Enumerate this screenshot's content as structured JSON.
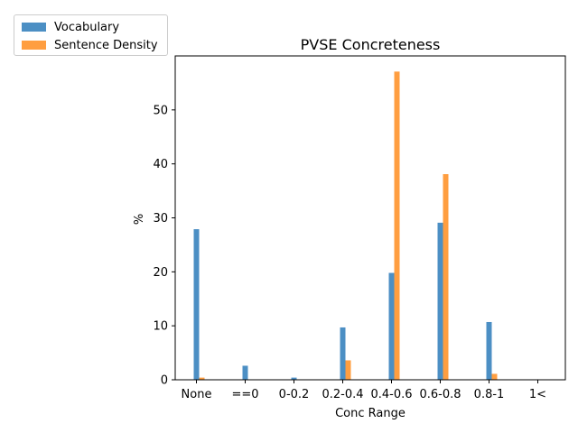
{
  "chart_data": {
    "type": "bar",
    "title": "PVSE Concreteness",
    "xlabel": "Conc Range",
    "ylabel": "%",
    "categories": [
      "None",
      "==0",
      "0-0.2",
      "0.2-0.4",
      "0.4-0.6",
      "0.6-0.8",
      "0.8-1",
      "1<"
    ],
    "series": [
      {
        "name": "Vocabulary",
        "color": "#4c8fc4",
        "values": [
          27.9,
          2.6,
          0.4,
          9.7,
          19.8,
          29.1,
          10.7,
          0.0
        ]
      },
      {
        "name": "Sentence Density",
        "color": "#ff9e40",
        "values": [
          0.4,
          0.0,
          0.0,
          3.6,
          57.1,
          38.1,
          1.1,
          0.0
        ]
      }
    ],
    "yticks": [
      0,
      10,
      20,
      30,
      40,
      50
    ],
    "ylim": [
      0,
      60
    ],
    "grid": false,
    "legend_position": "top-left"
  }
}
